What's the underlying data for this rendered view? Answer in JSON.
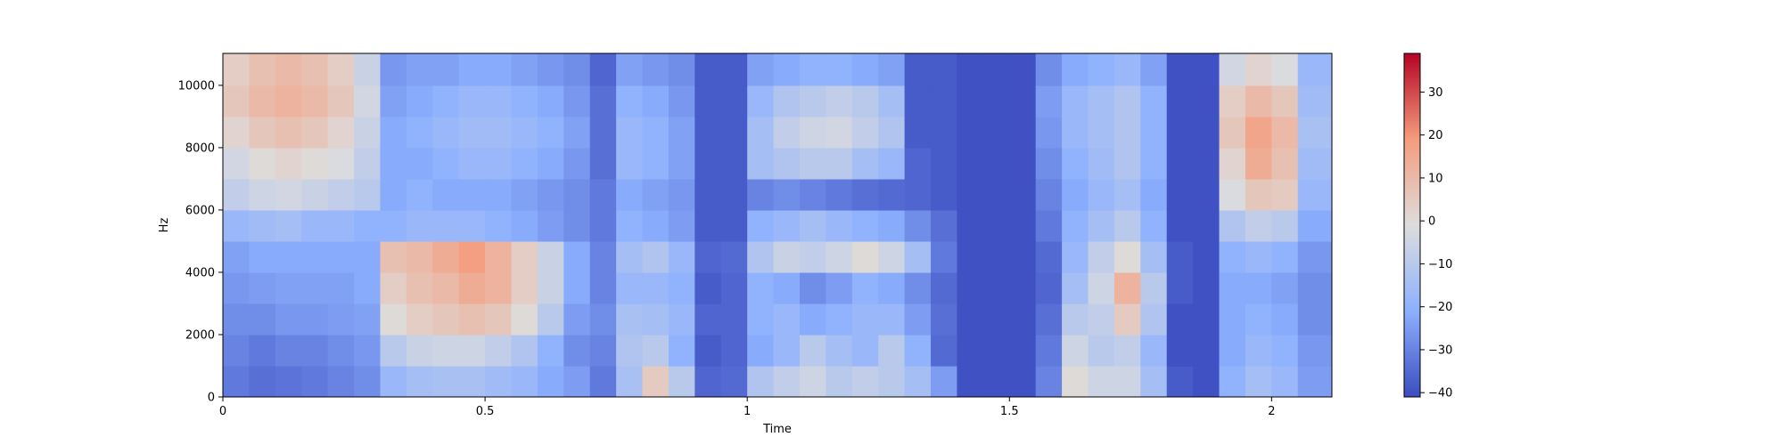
{
  "chart_data": {
    "type": "heatmap",
    "title": "",
    "xlabel": "Time",
    "ylabel": "Hz",
    "xlim": [
      0,
      2.115
    ],
    "ylim": [
      0,
      11025
    ],
    "x_ticks": [
      0,
      0.5,
      1,
      1.5,
      2
    ],
    "x_tick_labels": [
      "0",
      "0.5",
      "1",
      "1.5",
      "2"
    ],
    "y_ticks": [
      0,
      2000,
      4000,
      6000,
      8000,
      10000
    ],
    "y_tick_labels": [
      "0",
      "2000",
      "4000",
      "6000",
      "8000",
      "10000"
    ],
    "colormap": "coolwarm",
    "colorbar": {
      "min": -41,
      "max": 39,
      "ticks": [
        -40,
        -30,
        -20,
        -10,
        0,
        10,
        20,
        30
      ],
      "tick_labels": [
        "−40",
        "−30",
        "−20",
        "−10",
        "0",
        "10",
        "20",
        "30"
      ],
      "placement": "right"
    },
    "grid": false,
    "time_frames": [
      0.0,
      0.05,
      0.1,
      0.15,
      0.2,
      0.25,
      0.3,
      0.35,
      0.4,
      0.45,
      0.5,
      0.55,
      0.6,
      0.65,
      0.7,
      0.75,
      0.8,
      0.85,
      0.9,
      0.95,
      1.0,
      1.05,
      1.1,
      1.15,
      1.2,
      1.25,
      1.3,
      1.35,
      1.4,
      1.45,
      1.5,
      1.55,
      1.6,
      1.65,
      1.7,
      1.75,
      1.8,
      1.85,
      1.9,
      1.95,
      2.0,
      2.05
    ],
    "freq_bands_hz": [
      0,
      1000,
      2000,
      3000,
      4000,
      5000,
      6000,
      7000,
      8000,
      9000,
      10000
    ],
    "db_values": [
      [
        -32,
        -34,
        -33,
        -32,
        -30,
        -28,
        -18,
        -15,
        -14,
        -14,
        -16,
        -18,
        -22,
        -25,
        -32,
        -14,
        5,
        -10,
        -36,
        -35,
        -12,
        -8,
        -5,
        -10,
        -8,
        -10,
        -15,
        -25,
        -40,
        -40,
        -40,
        -30,
        0,
        -5,
        -5,
        -15,
        -38,
        -40,
        -20,
        -15,
        -18,
        -25
      ],
      [
        -30,
        -32,
        -30,
        -30,
        -28,
        -26,
        -10,
        -6,
        -5,
        -5,
        -8,
        -12,
        -20,
        -28,
        -30,
        -12,
        -10,
        -20,
        -38,
        -36,
        -22,
        -18,
        -10,
        -15,
        -18,
        -10,
        -20,
        -35,
        -40,
        -40,
        -40,
        -32,
        -5,
        -10,
        -8,
        -18,
        -40,
        -40,
        -22,
        -18,
        -20,
        -26
      ],
      [
        -28,
        -28,
        -26,
        -26,
        -25,
        -24,
        0,
        4,
        6,
        8,
        6,
        0,
        -10,
        -25,
        -28,
        -14,
        -15,
        -18,
        -36,
        -36,
        -20,
        -18,
        -22,
        -20,
        -18,
        -18,
        -25,
        -34,
        -40,
        -40,
        -40,
        -34,
        -10,
        -8,
        5,
        -12,
        -40,
        -40,
        -22,
        -20,
        -22,
        -28
      ],
      [
        -26,
        -25,
        -24,
        -24,
        -24,
        -22,
        4,
        8,
        10,
        14,
        12,
        4,
        -6,
        -22,
        -30,
        -18,
        -18,
        -20,
        -38,
        -36,
        -20,
        -22,
        -28,
        -25,
        -20,
        -22,
        -28,
        -35,
        -40,
        -40,
        -40,
        -36,
        -15,
        -5,
        12,
        -10,
        -38,
        -40,
        -22,
        -22,
        -24,
        -28
      ],
      [
        -24,
        -22,
        -22,
        -22,
        -22,
        -22,
        8,
        10,
        14,
        18,
        12,
        4,
        -6,
        -22,
        -30,
        -15,
        -12,
        -18,
        -36,
        -35,
        -12,
        -6,
        -8,
        -5,
        0,
        -5,
        -15,
        -32,
        -40,
        -40,
        -40,
        -35,
        -18,
        -8,
        0,
        -15,
        -38,
        -40,
        -20,
        -18,
        -20,
        -26
      ],
      [
        -18,
        -16,
        -15,
        -18,
        -18,
        -20,
        -20,
        -18,
        -18,
        -18,
        -20,
        -22,
        -25,
        -28,
        -32,
        -20,
        -22,
        -25,
        -38,
        -38,
        -20,
        -18,
        -15,
        -18,
        -20,
        -22,
        -28,
        -34,
        -40,
        -40,
        -40,
        -32,
        -20,
        -15,
        -10,
        -20,
        -40,
        -40,
        -12,
        -8,
        -10,
        -22
      ],
      [
        -8,
        -5,
        -4,
        -6,
        -8,
        -10,
        -22,
        -20,
        -22,
        -22,
        -22,
        -24,
        -26,
        -28,
        -32,
        -22,
        -24,
        -26,
        -38,
        -38,
        -30,
        -28,
        -30,
        -32,
        -34,
        -35,
        -36,
        -38,
        -40,
        -40,
        -40,
        -30,
        -22,
        -18,
        -15,
        -22,
        -40,
        -40,
        -2,
        6,
        5,
        -18
      ],
      [
        -4,
        0,
        2,
        0,
        -2,
        -8,
        -22,
        -22,
        -20,
        -18,
        -18,
        -20,
        -22,
        -26,
        -34,
        -18,
        -20,
        -24,
        -38,
        -38,
        -15,
        -12,
        -10,
        -10,
        -15,
        -18,
        -36,
        -38,
        -40,
        -40,
        -40,
        -28,
        -20,
        -16,
        -12,
        -20,
        -40,
        -40,
        2,
        14,
        8,
        -16
      ],
      [
        2,
        6,
        8,
        6,
        2,
        -6,
        -22,
        -20,
        -18,
        -16,
        -16,
        -18,
        -20,
        -24,
        -34,
        -18,
        -20,
        -24,
        -38,
        -38,
        -15,
        -8,
        -5,
        -4,
        -8,
        -12,
        -38,
        -38,
        -40,
        -40,
        -40,
        -26,
        -18,
        -15,
        -12,
        -20,
        -40,
        -40,
        6,
        16,
        10,
        -14
      ],
      [
        6,
        10,
        12,
        10,
        6,
        -4,
        -24,
        -22,
        -20,
        -18,
        -18,
        -20,
        -22,
        -26,
        -34,
        -20,
        -22,
        -26,
        -38,
        -38,
        -18,
        -12,
        -10,
        -8,
        -10,
        -15,
        -38,
        -38,
        -40,
        -40,
        -40,
        -25,
        -18,
        -15,
        -12,
        -20,
        -40,
        -40,
        4,
        10,
        6,
        -16
      ],
      [
        4,
        8,
        10,
        8,
        4,
        -6,
        -26,
        -24,
        -24,
        -22,
        -22,
        -24,
        -26,
        -28,
        -36,
        -24,
        -26,
        -28,
        -38,
        -38,
        -24,
        -22,
        -20,
        -20,
        -22,
        -24,
        -38,
        -38,
        -40,
        -40,
        -40,
        -28,
        -22,
        -20,
        -18,
        -24,
        -40,
        -40,
        -4,
        2,
        -2,
        -18
      ]
    ]
  }
}
